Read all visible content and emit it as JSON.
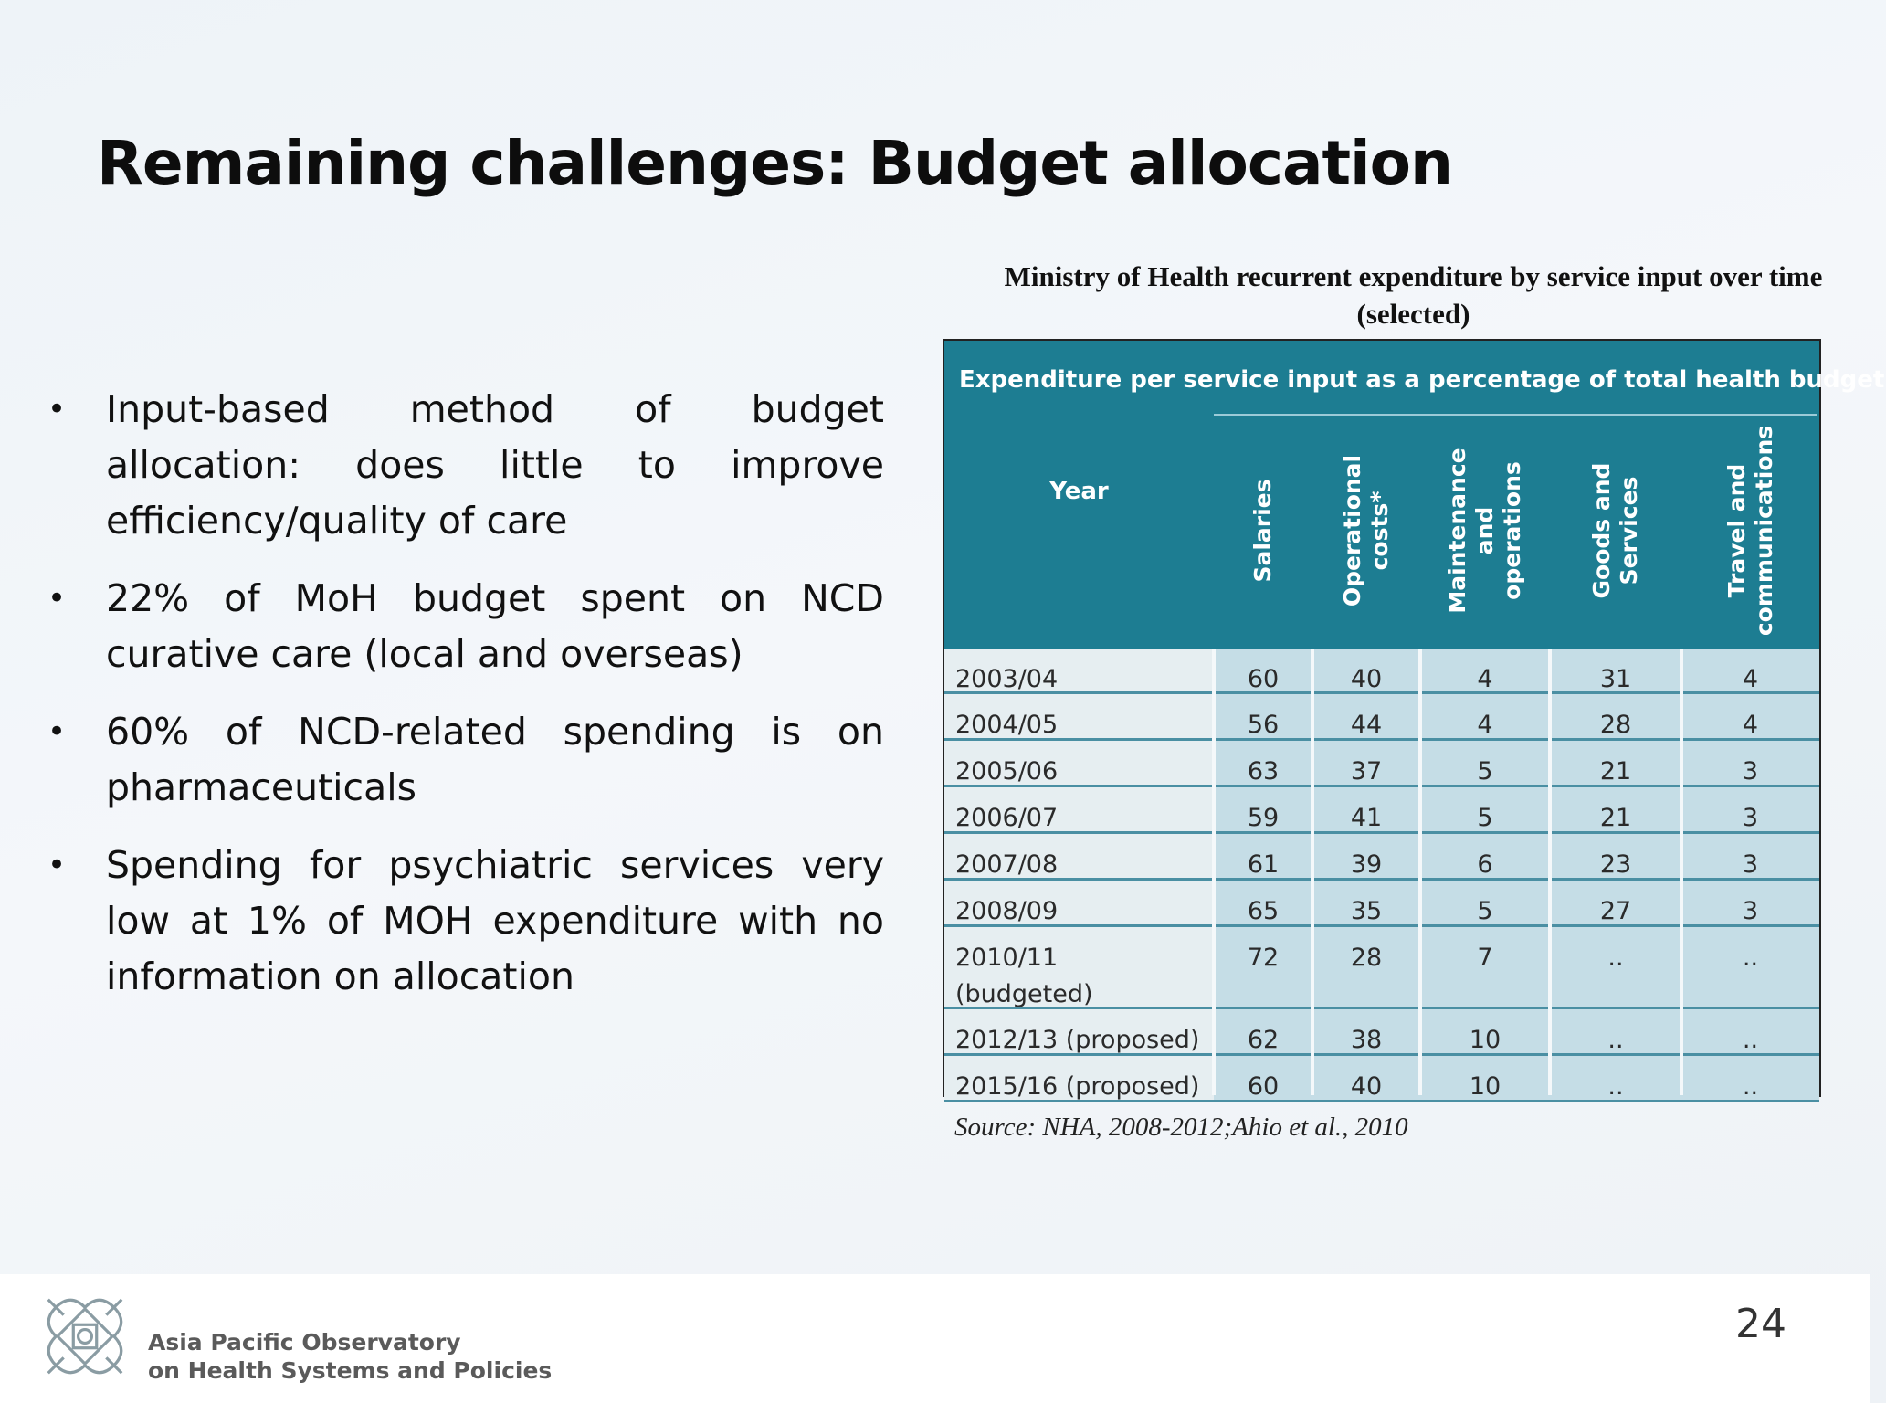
{
  "slide": {
    "title": "Remaining challenges: Budget allocation",
    "bullets": [
      "Input-based method of budget allocation: does little to improve efficiency/quality of care",
      "22% of MoH budget spent on NCD curative care (local and overseas)",
      "60% of NCD-related spending is on pharmaceuticals",
      "Spending for psychiatric services very low at 1% of MOH expenditure with no information on allocation"
    ],
    "page_number": "24"
  },
  "table": {
    "caption_line1": "Ministry of Health recurrent expenditure by service input over time",
    "caption_line2": "(selected)",
    "heading": "Expenditure per service input as a percentage of total health budget",
    "year_label": "Year",
    "columns": [
      [
        "Salaries"
      ],
      [
        "Operational",
        "costs*"
      ],
      [
        "Maintenance and",
        "operations"
      ],
      [
        "Goods and",
        "Services"
      ],
      [
        "Travel and",
        "communications"
      ]
    ],
    "rows": [
      {
        "year": "2003/04",
        "values": [
          "60",
          "40",
          "4",
          "31",
          "4"
        ]
      },
      {
        "year": "2004/05",
        "values": [
          "56",
          "44",
          "4",
          "28",
          "4"
        ]
      },
      {
        "year": "2005/06",
        "values": [
          "63",
          "37",
          "5",
          "21",
          "3"
        ]
      },
      {
        "year": "2006/07",
        "values": [
          "59",
          "41",
          "5",
          "21",
          "3"
        ]
      },
      {
        "year": "2007/08",
        "values": [
          "61",
          "39",
          "6",
          "23",
          "3"
        ]
      },
      {
        "year": "2008/09",
        "values": [
          "65",
          "35",
          "5",
          "27",
          "3"
        ]
      },
      {
        "year": "2010/11 (budgeted)",
        "values": [
          "72",
          "28",
          "7",
          "..",
          ".."
        ]
      },
      {
        "year": "2012/13 (proposed)",
        "values": [
          "62",
          "38",
          "10",
          "..",
          ".."
        ]
      },
      {
        "year": "2015/16 (proposed)",
        "values": [
          "60",
          "40",
          "10",
          "..",
          ".."
        ]
      }
    ],
    "source": "Source: NHA, 2008-2012;Ahio et al., 2010"
  },
  "footer": {
    "org_line1": "Asia Pacific Observatory",
    "org_line2": "on Health Systems and Policies"
  },
  "colors": {
    "table_header": "#1d7d92",
    "table_cell": "#c5dde6",
    "table_year_cell": "#e6eef1",
    "row_rule": "#4a8fa3"
  }
}
